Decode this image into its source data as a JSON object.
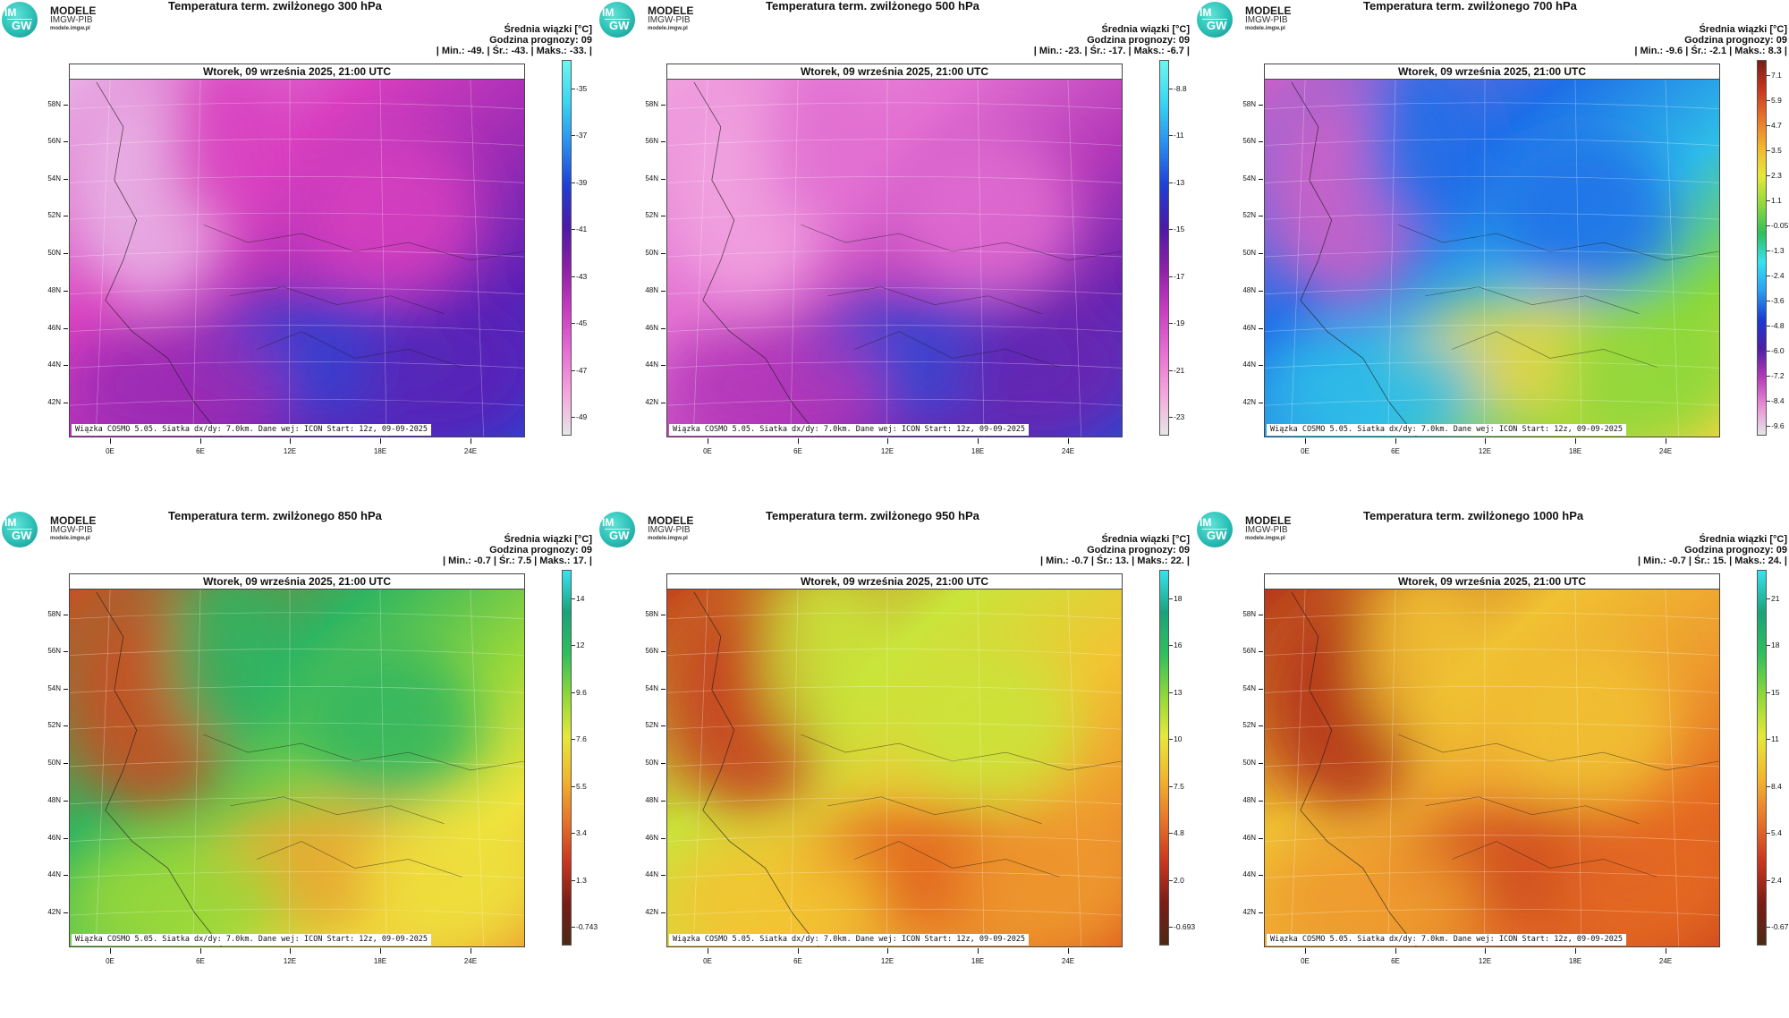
{
  "logo": {
    "mark_top": "IM",
    "mark_bottom": "GW",
    "line1": "MODELE",
    "line2": "IMGW-PIB",
    "line3": "modele.imgw.pl"
  },
  "common": {
    "subtitle": "Średnia wiązki [°C]",
    "forecast_hour": "Godzina prognozy: 09",
    "date_line": "Wtorek, 09 września 2025, 21:00 UTC",
    "footer": "Wiązka COSMO 5.05. Siatka dx/dy: 7.0km. Dane wej: ICON Start: 12z, 09-09-2025",
    "lat_labels": [
      "58N",
      "56N",
      "54N",
      "52N",
      "50N",
      "48N",
      "46N",
      "44N",
      "42N"
    ],
    "lon_labels": [
      "0E",
      "6E",
      "12E",
      "18E",
      "24E"
    ]
  },
  "panels": [
    {
      "title": "Temperatura term. zwilżonego 300 hPa",
      "stats": "| Min.:   -49. | Śr.:   -43. | Maks.:   -33. |",
      "colorbar_labels": [
        "-35",
        "-37",
        "-39",
        "-41",
        "-43",
        "-45",
        "-47",
        "-49"
      ],
      "colorbar_colors": [
        "#e6e6e6",
        "#f5a6dd",
        "#e86ed4",
        "#c93cc1",
        "#8e1fa8",
        "#4b1aa8",
        "#1f3fd6",
        "#2a8ef0",
        "#3ad6f2",
        "#6ff5ef"
      ],
      "field_colors": [
        "#d83fbf",
        "#9b2bb4",
        "#5a22b6",
        "#2f3fd0",
        "#e9b6e6"
      ]
    },
    {
      "title": "Temperatura term. zwilżonego 500 hPa",
      "stats": "| Min.:   -23. | Śr.:   -17. | Maks.:   -6.7 |",
      "colorbar_labels": [
        "-8.8",
        "-11",
        "-13",
        "-15",
        "-17",
        "-19",
        "-21",
        "-23"
      ],
      "colorbar_colors": [
        "#e6e6e6",
        "#f5a6dd",
        "#e86ed4",
        "#c93cc1",
        "#8e1fa8",
        "#4b1aa8",
        "#1f3fd6",
        "#2a8ef0",
        "#3ad6f2",
        "#6ff5ef"
      ],
      "field_colors": [
        "#e26fd1",
        "#b237b8",
        "#6a23b0",
        "#2d47d1",
        "#f1a4e0"
      ]
    },
    {
      "title": "Temperatura term. zwilżonego 700 hPa",
      "stats": "| Min.:   -9.6 | Śr.:   -2.1 | Maks.:   8.3 |",
      "colorbar_labels": [
        "7.1",
        "5.9",
        "4.7",
        "3.5",
        "2.3",
        "1.1",
        "-0.057",
        "-1.3",
        "-2.4",
        "-3.6",
        "-4.8",
        "-6.0",
        "-7.2",
        "-8.4",
        "-9.6"
      ],
      "colorbar_colors": [
        "#e6e6e6",
        "#e98fd4",
        "#b63ab8",
        "#4d1ea6",
        "#1b3bd0",
        "#2a9ef2",
        "#36e3f0",
        "#2fbf5c",
        "#8fd83a",
        "#e6e83a",
        "#f2b52f",
        "#e8752a",
        "#c9361f",
        "#7a1d16"
      ],
      "field_colors": [
        "#1f6ee8",
        "#2fbde8",
        "#8ad83b",
        "#f0d640",
        "#d560c6"
      ]
    },
    {
      "title": "Temperatura term. zwilżonego 850 hPa",
      "stats": "| Min.:   -0.7 | Śr.:   7.5 | Maks.:   17. |",
      "colorbar_labels": [
        "14",
        "12",
        "9.6",
        "7.6",
        "5.5",
        "3.4",
        "1.3",
        "-0.743"
      ],
      "colorbar_colors": [
        "#4d2a14",
        "#7a1d16",
        "#c9361f",
        "#e8752a",
        "#f2b52f",
        "#e6e83a",
        "#8fd83a",
        "#2fbf5c",
        "#1aa37a",
        "#36e3f0"
      ],
      "field_colors": [
        "#2fb561",
        "#9ad83a",
        "#efe33c",
        "#eda533",
        "#cf4a20"
      ]
    },
    {
      "title": "Temperatura term. zwilżonego 950 hPa",
      "stats": "| Min.:   -0.7 | Śr.:   13. | Maks.:   22. |",
      "colorbar_labels": [
        "18",
        "16",
        "13",
        "10",
        "7.5",
        "4.8",
        "2.0",
        "-0.693"
      ],
      "colorbar_colors": [
        "#4d2a14",
        "#7a1d16",
        "#c9361f",
        "#e8752a",
        "#f2b52f",
        "#e6e83a",
        "#8fd83a",
        "#2fbf5c",
        "#1aa37a",
        "#36e3f0"
      ],
      "field_colors": [
        "#c9e53a",
        "#f2c433",
        "#ee9a2e",
        "#e0621f",
        "#c53a1c"
      ]
    },
    {
      "title": "Temperatura term. zwilżonego 1000 hPa",
      "stats": "| Min.:   -0.7 | Śr.:   15. | Maks.:   24. |",
      "colorbar_labels": [
        "21",
        "18",
        "15",
        "11",
        "8.4",
        "5.4",
        "2.4",
        "-0.671"
      ],
      "colorbar_colors": [
        "#4d2a14",
        "#7a1d16",
        "#c9361f",
        "#e8752a",
        "#f2b52f",
        "#e6e83a",
        "#8fd83a",
        "#2fbf5c",
        "#1aa37a",
        "#36e3f0"
      ],
      "field_colors": [
        "#f0c233",
        "#ee9b2e",
        "#e56a22",
        "#cf4a20",
        "#b2301a"
      ]
    }
  ]
}
